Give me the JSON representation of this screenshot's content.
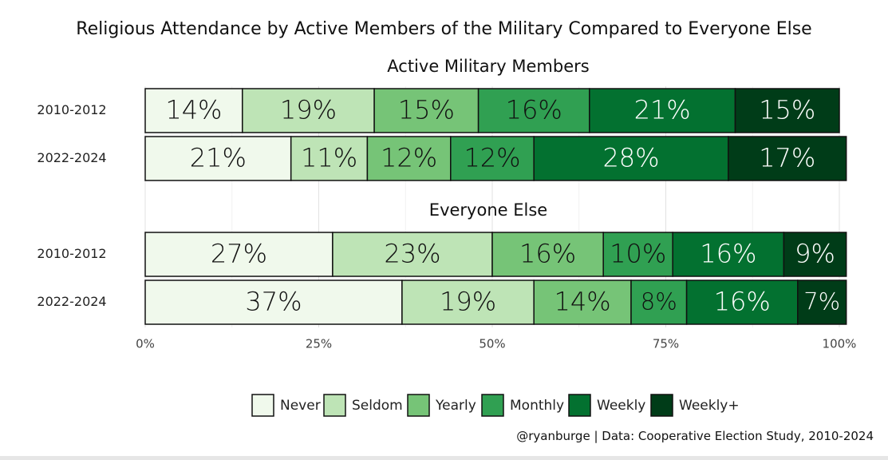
{
  "chart_data": {
    "type": "bar",
    "orientation": "horizontal",
    "stacked": true,
    "title": "Religious Attendance by Active Members of the Military Compared to Everyone Else",
    "xlim": [
      0,
      100
    ],
    "x_ticks": [
      "0%",
      "25%",
      "50%",
      "75%",
      "100%"
    ],
    "grid": true,
    "legend_position": "bottom",
    "categories": [
      "Never",
      "Seldom",
      "Yearly",
      "Monthly",
      "Weekly",
      "Weekly+"
    ],
    "colors": [
      "#f0f9ec",
      "#bee4b6",
      "#76c477",
      "#30a052",
      "#037130",
      "#003c18"
    ],
    "label_colors": [
      "#111111",
      "#111111",
      "#111111",
      "#111111",
      "#ffffff",
      "#ffffff"
    ],
    "panels": [
      {
        "title": "Active Military Members",
        "rows": [
          {
            "label": "2010-2012",
            "values": [
              14,
              19,
              15,
              16,
              21,
              15
            ],
            "labels": [
              "14%",
              "19%",
              "15%",
              "16%",
              "21%",
              "15%"
            ]
          },
          {
            "label": "2022-2024",
            "values": [
              21,
              11,
              12,
              12,
              28,
              17
            ],
            "labels": [
              "21%",
              "11%",
              "12%",
              "12%",
              "28%",
              "17%"
            ]
          }
        ]
      },
      {
        "title": "Everyone Else",
        "rows": [
          {
            "label": "2010-2012",
            "values": [
              27,
              23,
              16,
              10,
              16,
              9
            ],
            "labels": [
              "27%",
              "23%",
              "16%",
              "10%",
              "16%",
              "9%"
            ]
          },
          {
            "label": "2022-2024",
            "values": [
              37,
              19,
              14,
              8,
              16,
              7
            ],
            "labels": [
              "37%",
              "19%",
              "14%",
              "8%",
              "16%",
              "7%"
            ]
          }
        ]
      }
    ]
  },
  "caption": "@ryanburge | Data: Cooperative Election Study, 2010-2024"
}
